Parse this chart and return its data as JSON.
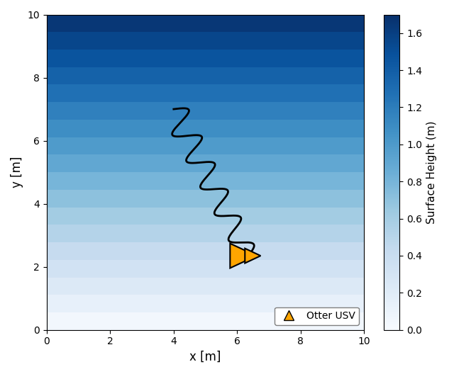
{
  "xlim": [
    0,
    10
  ],
  "ylim": [
    0,
    10
  ],
  "xlabel": "x [m]",
  "ylabel": "y [m]",
  "colorbar_label": "Surface Height (m)",
  "colorbar_vmin": 0.0,
  "colorbar_vmax": 1.7,
  "cmap": "Blues",
  "n_bands": 18,
  "trajectory_color": "black",
  "trajectory_linewidth": 2.0,
  "usv_color": "#FFA500",
  "legend_label": "Otter USV",
  "figsize": [
    6.4,
    5.28
  ],
  "dpi": 100,
  "x_start": 4.0,
  "y_start": 7.0,
  "x_end": 6.35,
  "y_end": 2.35,
  "n_cycles": 5.5,
  "amplitude": 0.42,
  "usv_triangle_size": 0.52
}
